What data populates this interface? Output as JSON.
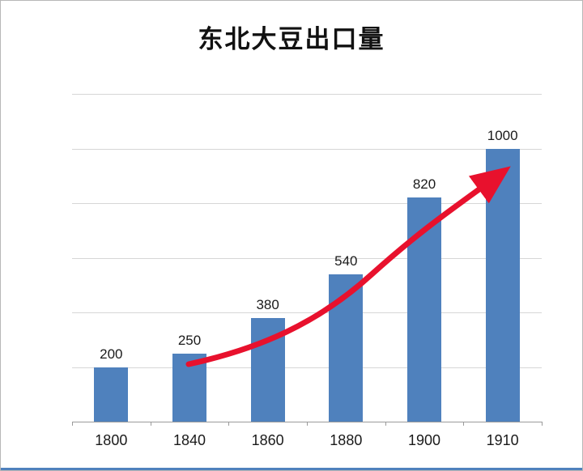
{
  "chart_data": {
    "type": "bar",
    "title": "东北大豆出口量",
    "categories": [
      "1800",
      "1840",
      "1860",
      "1880",
      "1900",
      "1910"
    ],
    "values": [
      200,
      250,
      380,
      540,
      820,
      1000
    ],
    "value_labels": [
      "200",
      "250",
      "380",
      "540",
      "820",
      "1000"
    ],
    "xlabel": "",
    "ylabel": "",
    "ylim": [
      0,
      1200
    ],
    "grid_step": 200,
    "grid": true,
    "legend": "none",
    "bar_color": "#4f81bd",
    "annotation": {
      "type": "trend-arrow",
      "color": "#e8112d",
      "description": "red curved arrow rising from the 1840 bar toward the 1910 bar"
    }
  }
}
